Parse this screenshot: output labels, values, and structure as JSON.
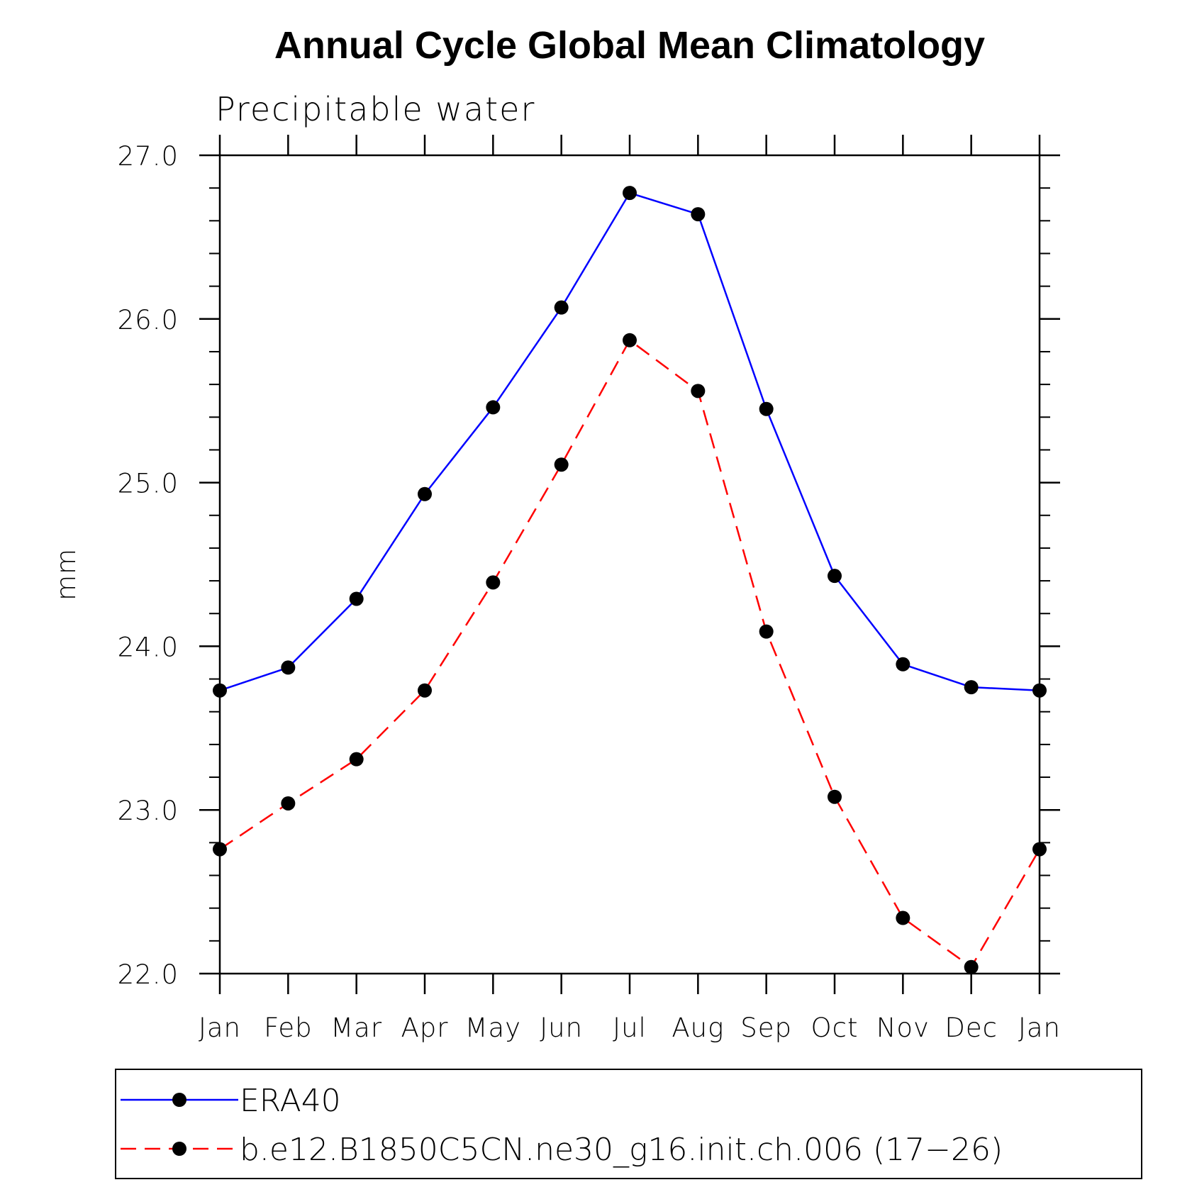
{
  "chart_data": {
    "type": "line",
    "title": "Annual Cycle Global Mean Climatology",
    "subtitle": "Precipitable water",
    "ylabel": "mm",
    "xlabel": "",
    "ylim": [
      22.0,
      27.0
    ],
    "yticks": [
      "22.0",
      "23.0",
      "24.0",
      "25.0",
      "26.0",
      "27.0"
    ],
    "categories": [
      "Jan",
      "Feb",
      "Mar",
      "Apr",
      "May",
      "Jun",
      "Jul",
      "Aug",
      "Sep",
      "Oct",
      "Nov",
      "Dec",
      "Jan"
    ],
    "series": [
      {
        "name": "ERA40",
        "color": "#0000ff",
        "line_style": "solid",
        "marker": "filled-circle",
        "values": [
          23.73,
          23.87,
          24.29,
          24.93,
          25.46,
          26.07,
          26.77,
          26.64,
          25.45,
          24.43,
          23.89,
          23.75,
          23.73
        ]
      },
      {
        "name": "b.e12.B1850C5CN.ne30_g16.init.ch.006 (17−26)",
        "color": "#ff0000",
        "line_style": "dashed",
        "marker": "filled-circle",
        "values": [
          22.76,
          23.04,
          23.31,
          23.73,
          24.39,
          25.11,
          25.87,
          25.56,
          24.09,
          23.08,
          22.34,
          22.04,
          22.76
        ]
      }
    ],
    "legend_position": "bottom"
  }
}
